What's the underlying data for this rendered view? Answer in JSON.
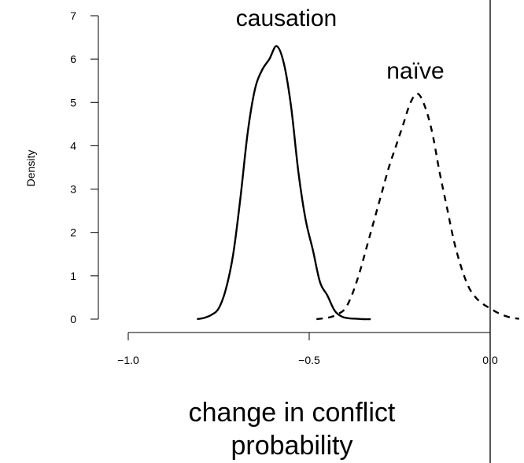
{
  "chart_data": {
    "type": "line",
    "ylabel": "Density",
    "xlabel_lines": [
      "change in conflict",
      "probability"
    ],
    "xlim": [
      -1.02,
      0.08
    ],
    "ylim": [
      0,
      7
    ],
    "x_ticks": [
      -1.0,
      -0.5,
      0.0
    ],
    "x_tick_labels": [
      "−1.0",
      "−0.5",
      "0.0"
    ],
    "y_ticks": [
      0,
      1,
      2,
      3,
      4,
      5,
      6,
      7
    ],
    "y_tick_labels": [
      "0",
      "1",
      "2",
      "3",
      "4",
      "5",
      "6",
      "7"
    ],
    "reference_line_x": 0.0,
    "series": [
      {
        "name": "causation",
        "line_style": "solid",
        "x": [
          -0.81,
          -0.79,
          -0.77,
          -0.75,
          -0.73,
          -0.71,
          -0.69,
          -0.67,
          -0.65,
          -0.63,
          -0.61,
          -0.59,
          -0.57,
          -0.55,
          -0.53,
          -0.51,
          -0.49,
          -0.47,
          -0.45,
          -0.43,
          -0.41,
          -0.39,
          -0.37,
          -0.35,
          -0.33
        ],
        "y": [
          0.0,
          0.03,
          0.1,
          0.25,
          0.7,
          1.5,
          2.8,
          4.3,
          5.3,
          5.75,
          6.0,
          6.3,
          5.9,
          4.9,
          3.4,
          2.3,
          1.6,
          0.85,
          0.55,
          0.2,
          0.06,
          0.02,
          0.01,
          0.0,
          0.0
        ]
      },
      {
        "name": "naïve",
        "line_style": "dashed",
        "x": [
          -0.48,
          -0.46,
          -0.44,
          -0.42,
          -0.4,
          -0.38,
          -0.36,
          -0.34,
          -0.32,
          -0.3,
          -0.28,
          -0.26,
          -0.24,
          -0.22,
          -0.2,
          -0.18,
          -0.16,
          -0.14,
          -0.12,
          -0.1,
          -0.08,
          -0.06,
          -0.04,
          -0.02,
          0.0,
          0.02,
          0.04,
          0.06,
          0.08
        ],
        "y": [
          0.0,
          0.02,
          0.05,
          0.12,
          0.25,
          0.6,
          1.1,
          1.7,
          2.3,
          2.9,
          3.5,
          4.0,
          4.5,
          5.0,
          5.2,
          4.9,
          4.3,
          3.4,
          2.6,
          1.8,
          1.2,
          0.75,
          0.5,
          0.35,
          0.25,
          0.15,
          0.08,
          0.03,
          0.01
        ]
      }
    ],
    "annotations": [
      {
        "text": "causation",
        "near_series": "causation"
      },
      {
        "text": "naïve",
        "near_series": "naïve"
      }
    ]
  }
}
